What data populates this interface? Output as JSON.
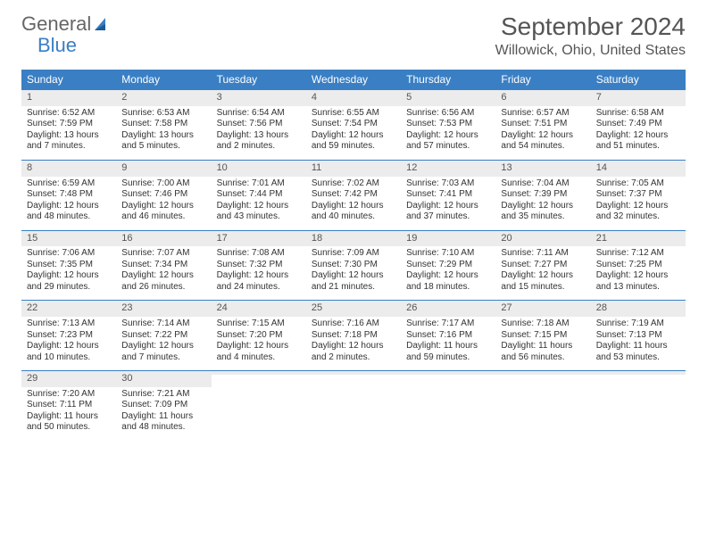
{
  "brand": {
    "part1": "General",
    "part2": "Blue"
  },
  "title": "September 2024",
  "location": "Willowick, Ohio, United States",
  "colors": {
    "accent": "#3a7fc4",
    "header_bg": "#3a7fc4",
    "daynum_bg": "#ececec",
    "text": "#333333"
  },
  "weekdays": [
    "Sunday",
    "Monday",
    "Tuesday",
    "Wednesday",
    "Thursday",
    "Friday",
    "Saturday"
  ],
  "weeks": [
    [
      {
        "n": "1",
        "sr": "Sunrise: 6:52 AM",
        "ss": "Sunset: 7:59 PM",
        "d1": "Daylight: 13 hours",
        "d2": "and 7 minutes."
      },
      {
        "n": "2",
        "sr": "Sunrise: 6:53 AM",
        "ss": "Sunset: 7:58 PM",
        "d1": "Daylight: 13 hours",
        "d2": "and 5 minutes."
      },
      {
        "n": "3",
        "sr": "Sunrise: 6:54 AM",
        "ss": "Sunset: 7:56 PM",
        "d1": "Daylight: 13 hours",
        "d2": "and 2 minutes."
      },
      {
        "n": "4",
        "sr": "Sunrise: 6:55 AM",
        "ss": "Sunset: 7:54 PM",
        "d1": "Daylight: 12 hours",
        "d2": "and 59 minutes."
      },
      {
        "n": "5",
        "sr": "Sunrise: 6:56 AM",
        "ss": "Sunset: 7:53 PM",
        "d1": "Daylight: 12 hours",
        "d2": "and 57 minutes."
      },
      {
        "n": "6",
        "sr": "Sunrise: 6:57 AM",
        "ss": "Sunset: 7:51 PM",
        "d1": "Daylight: 12 hours",
        "d2": "and 54 minutes."
      },
      {
        "n": "7",
        "sr": "Sunrise: 6:58 AM",
        "ss": "Sunset: 7:49 PM",
        "d1": "Daylight: 12 hours",
        "d2": "and 51 minutes."
      }
    ],
    [
      {
        "n": "8",
        "sr": "Sunrise: 6:59 AM",
        "ss": "Sunset: 7:48 PM",
        "d1": "Daylight: 12 hours",
        "d2": "and 48 minutes."
      },
      {
        "n": "9",
        "sr": "Sunrise: 7:00 AM",
        "ss": "Sunset: 7:46 PM",
        "d1": "Daylight: 12 hours",
        "d2": "and 46 minutes."
      },
      {
        "n": "10",
        "sr": "Sunrise: 7:01 AM",
        "ss": "Sunset: 7:44 PM",
        "d1": "Daylight: 12 hours",
        "d2": "and 43 minutes."
      },
      {
        "n": "11",
        "sr": "Sunrise: 7:02 AM",
        "ss": "Sunset: 7:42 PM",
        "d1": "Daylight: 12 hours",
        "d2": "and 40 minutes."
      },
      {
        "n": "12",
        "sr": "Sunrise: 7:03 AM",
        "ss": "Sunset: 7:41 PM",
        "d1": "Daylight: 12 hours",
        "d2": "and 37 minutes."
      },
      {
        "n": "13",
        "sr": "Sunrise: 7:04 AM",
        "ss": "Sunset: 7:39 PM",
        "d1": "Daylight: 12 hours",
        "d2": "and 35 minutes."
      },
      {
        "n": "14",
        "sr": "Sunrise: 7:05 AM",
        "ss": "Sunset: 7:37 PM",
        "d1": "Daylight: 12 hours",
        "d2": "and 32 minutes."
      }
    ],
    [
      {
        "n": "15",
        "sr": "Sunrise: 7:06 AM",
        "ss": "Sunset: 7:35 PM",
        "d1": "Daylight: 12 hours",
        "d2": "and 29 minutes."
      },
      {
        "n": "16",
        "sr": "Sunrise: 7:07 AM",
        "ss": "Sunset: 7:34 PM",
        "d1": "Daylight: 12 hours",
        "d2": "and 26 minutes."
      },
      {
        "n": "17",
        "sr": "Sunrise: 7:08 AM",
        "ss": "Sunset: 7:32 PM",
        "d1": "Daylight: 12 hours",
        "d2": "and 24 minutes."
      },
      {
        "n": "18",
        "sr": "Sunrise: 7:09 AM",
        "ss": "Sunset: 7:30 PM",
        "d1": "Daylight: 12 hours",
        "d2": "and 21 minutes."
      },
      {
        "n": "19",
        "sr": "Sunrise: 7:10 AM",
        "ss": "Sunset: 7:29 PM",
        "d1": "Daylight: 12 hours",
        "d2": "and 18 minutes."
      },
      {
        "n": "20",
        "sr": "Sunrise: 7:11 AM",
        "ss": "Sunset: 7:27 PM",
        "d1": "Daylight: 12 hours",
        "d2": "and 15 minutes."
      },
      {
        "n": "21",
        "sr": "Sunrise: 7:12 AM",
        "ss": "Sunset: 7:25 PM",
        "d1": "Daylight: 12 hours",
        "d2": "and 13 minutes."
      }
    ],
    [
      {
        "n": "22",
        "sr": "Sunrise: 7:13 AM",
        "ss": "Sunset: 7:23 PM",
        "d1": "Daylight: 12 hours",
        "d2": "and 10 minutes."
      },
      {
        "n": "23",
        "sr": "Sunrise: 7:14 AM",
        "ss": "Sunset: 7:22 PM",
        "d1": "Daylight: 12 hours",
        "d2": "and 7 minutes."
      },
      {
        "n": "24",
        "sr": "Sunrise: 7:15 AM",
        "ss": "Sunset: 7:20 PM",
        "d1": "Daylight: 12 hours",
        "d2": "and 4 minutes."
      },
      {
        "n": "25",
        "sr": "Sunrise: 7:16 AM",
        "ss": "Sunset: 7:18 PM",
        "d1": "Daylight: 12 hours",
        "d2": "and 2 minutes."
      },
      {
        "n": "26",
        "sr": "Sunrise: 7:17 AM",
        "ss": "Sunset: 7:16 PM",
        "d1": "Daylight: 11 hours",
        "d2": "and 59 minutes."
      },
      {
        "n": "27",
        "sr": "Sunrise: 7:18 AM",
        "ss": "Sunset: 7:15 PM",
        "d1": "Daylight: 11 hours",
        "d2": "and 56 minutes."
      },
      {
        "n": "28",
        "sr": "Sunrise: 7:19 AM",
        "ss": "Sunset: 7:13 PM",
        "d1": "Daylight: 11 hours",
        "d2": "and 53 minutes."
      }
    ],
    [
      {
        "n": "29",
        "sr": "Sunrise: 7:20 AM",
        "ss": "Sunset: 7:11 PM",
        "d1": "Daylight: 11 hours",
        "d2": "and 50 minutes."
      },
      {
        "n": "30",
        "sr": "Sunrise: 7:21 AM",
        "ss": "Sunset: 7:09 PM",
        "d1": "Daylight: 11 hours",
        "d2": "and 48 minutes."
      },
      {
        "n": "",
        "sr": "",
        "ss": "",
        "d1": "",
        "d2": ""
      },
      {
        "n": "",
        "sr": "",
        "ss": "",
        "d1": "",
        "d2": ""
      },
      {
        "n": "",
        "sr": "",
        "ss": "",
        "d1": "",
        "d2": ""
      },
      {
        "n": "",
        "sr": "",
        "ss": "",
        "d1": "",
        "d2": ""
      },
      {
        "n": "",
        "sr": "",
        "ss": "",
        "d1": "",
        "d2": ""
      }
    ]
  ]
}
